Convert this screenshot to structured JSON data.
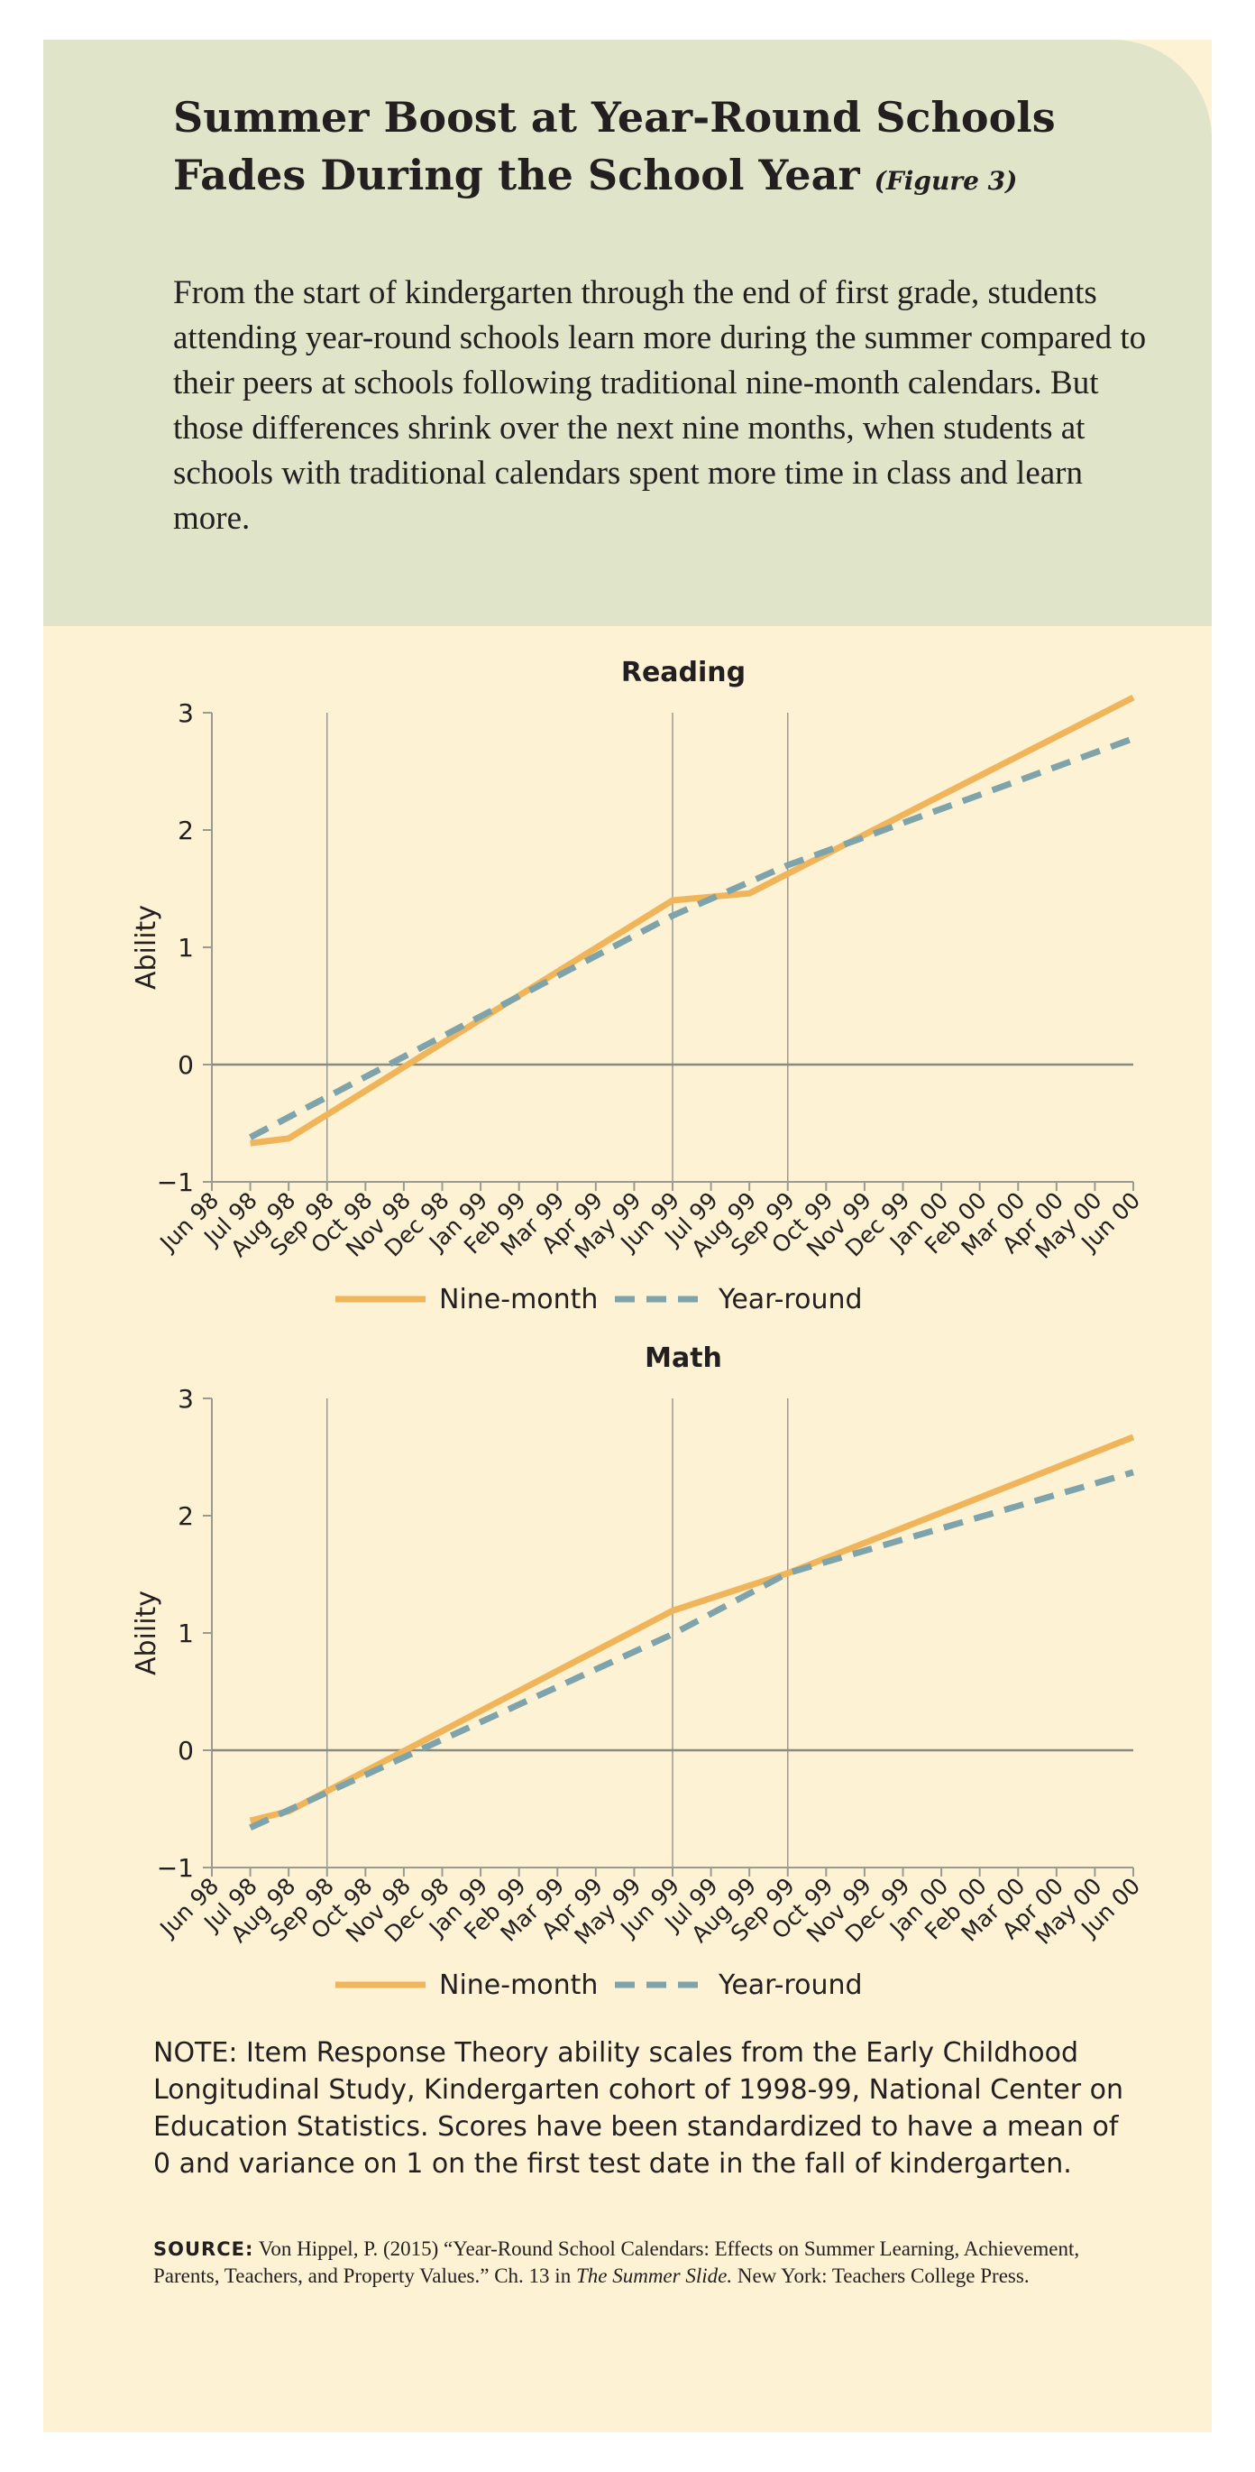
{
  "header": {
    "title": "Summer Boost at Year-Round Schools Fades During the School Year",
    "figure_label": "(Figure 3)",
    "intro": "From the start of kindergarten through the end of first grade, students attending year-round schools learn more during the summer compared to their peers at schools following traditional nine-month calendars. But those differences shrink over the next nine months, when students at schools with traditional calendars spent more time in class and learn more."
  },
  "colors": {
    "header_bg": "#e0e4c8",
    "card_bg": "#fdf2d3",
    "nine_month": "#f0b55a",
    "year_round": "#7fa3aa"
  },
  "chart_data": [
    {
      "type": "line",
      "title": "Reading",
      "ylabel": "Ability",
      "xlabel": "",
      "categories": [
        "Jun 98",
        "Jul 98",
        "Aug 98",
        "Sep 98",
        "Oct 98",
        "Nov 98",
        "Dec 98",
        "Jan 99",
        "Feb 99",
        "Mar 99",
        "Apr 99",
        "May 99",
        "Jun 99",
        "Jul 99",
        "Aug 99",
        "Sep 99",
        "Oct 99",
        "Nov 99",
        "Dec 99",
        "Jan 00",
        "Feb 00",
        "Mar 00",
        "Apr 00",
        "May 00",
        "Jun 00"
      ],
      "yticks": [
        -1,
        0,
        1,
        2,
        3
      ],
      "ylim": [
        -1,
        3
      ],
      "vertical_gridlines_at": [
        "Sep 98",
        "Jun 99",
        "Sep 99"
      ],
      "zero_line": true,
      "legend": "bottom-center",
      "series": [
        {
          "name": "Nine-month",
          "style": "solid",
          "points": [
            [
              "Jul 98",
              -0.67
            ],
            [
              "Aug 98",
              -0.63
            ],
            [
              "Jun 99",
              1.4
            ],
            [
              "Aug 99",
              1.46
            ],
            [
              "Jun 00",
              3.13
            ]
          ]
        },
        {
          "name": "Year-round",
          "style": "dashed",
          "points": [
            [
              "Jul 98",
              -0.62
            ],
            [
              "Jun 99",
              1.27
            ],
            [
              "Sep 99",
              1.7
            ],
            [
              "Jun 00",
              2.78
            ]
          ]
        }
      ]
    },
    {
      "type": "line",
      "title": "Math",
      "ylabel": "Ability",
      "xlabel": "",
      "categories": [
        "Jun 98",
        "Jul 98",
        "Aug 98",
        "Sep 98",
        "Oct 98",
        "Nov 98",
        "Dec 98",
        "Jan 99",
        "Feb 99",
        "Mar 99",
        "Apr 99",
        "May 99",
        "Jun 99",
        "Jul 99",
        "Aug 99",
        "Sep 99",
        "Oct 99",
        "Nov 99",
        "Dec 99",
        "Jan 00",
        "Feb 00",
        "Mar 00",
        "Apr 00",
        "May 00",
        "Jun 00"
      ],
      "yticks": [
        -1,
        0,
        1,
        2,
        3
      ],
      "ylim": [
        -1,
        3
      ],
      "vertical_gridlines_at": [
        "Sep 98",
        "Jun 99",
        "Sep 99"
      ],
      "zero_line": true,
      "legend": "bottom-center",
      "series": [
        {
          "name": "Nine-month",
          "style": "solid",
          "points": [
            [
              "Jul 98",
              -0.6
            ],
            [
              "Aug 98",
              -0.52
            ],
            [
              "Jun 99",
              1.19
            ],
            [
              "Sep 99",
              1.51
            ],
            [
              "Jun 00",
              2.67
            ]
          ]
        },
        {
          "name": "Year-round",
          "style": "dashed",
          "points": [
            [
              "Jul 98",
              -0.66
            ],
            [
              "Jun 99",
              0.99
            ],
            [
              "Sep 99",
              1.51
            ],
            [
              "Jun 00",
              2.37
            ]
          ]
        }
      ]
    }
  ],
  "note": "NOTE: Item Response Theory ability scales from the Early Childhood Longitudinal Study, Kindergarten cohort of 1998-99, National Center on Education Statistics. Scores have been standardized to have a mean of 0 and variance on 1 on the first test date in the fall of kindergarten.",
  "source": {
    "label": "SOURCE:",
    "text_before_italic": "Von Hippel, P. (2015) “Year-Round School Calendars: Effects on Summer Learning, Achievement, Parents, Teachers, and Property Values.” Ch. 13 in ",
    "italic": "The Summer Slide.",
    "text_after_italic": " New York: Teachers College Press."
  }
}
